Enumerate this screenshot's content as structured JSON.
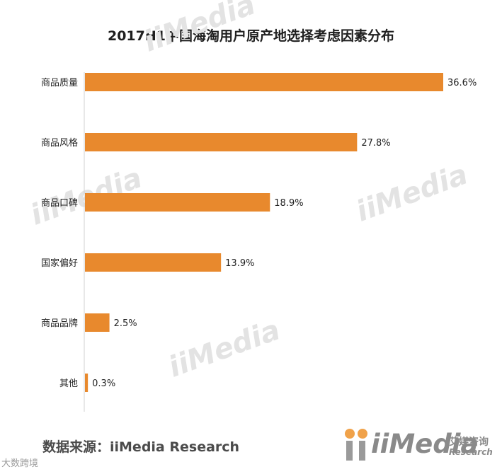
{
  "chart_data": {
    "type": "bar",
    "orientation": "horizontal",
    "title": "2017H1中国海淘用户原产地选择考虑因素分布",
    "categories": [
      "商品质量",
      "商品风格",
      "商品口碑",
      "国家偏好",
      "商品品牌",
      "其他"
    ],
    "values": [
      36.6,
      27.8,
      18.9,
      13.9,
      2.5,
      0.3
    ],
    "value_labels": [
      "36.6%",
      "27.8%",
      "18.9%",
      "13.9%",
      "2.5%",
      "0.3%"
    ],
    "xlim": [
      0,
      36.6
    ],
    "bar_color": "#e8892d",
    "grid": false,
    "xlabel": "",
    "ylabel": ""
  },
  "source": "数据来源：iiMedia Research",
  "watermark": {
    "brand": "iiMedia",
    "cn": "艾媒咨询",
    "en": "Research"
  },
  "corner_mark": "大数跨境",
  "colors": {
    "axis": "#d0d0d0",
    "text": "#222222"
  }
}
